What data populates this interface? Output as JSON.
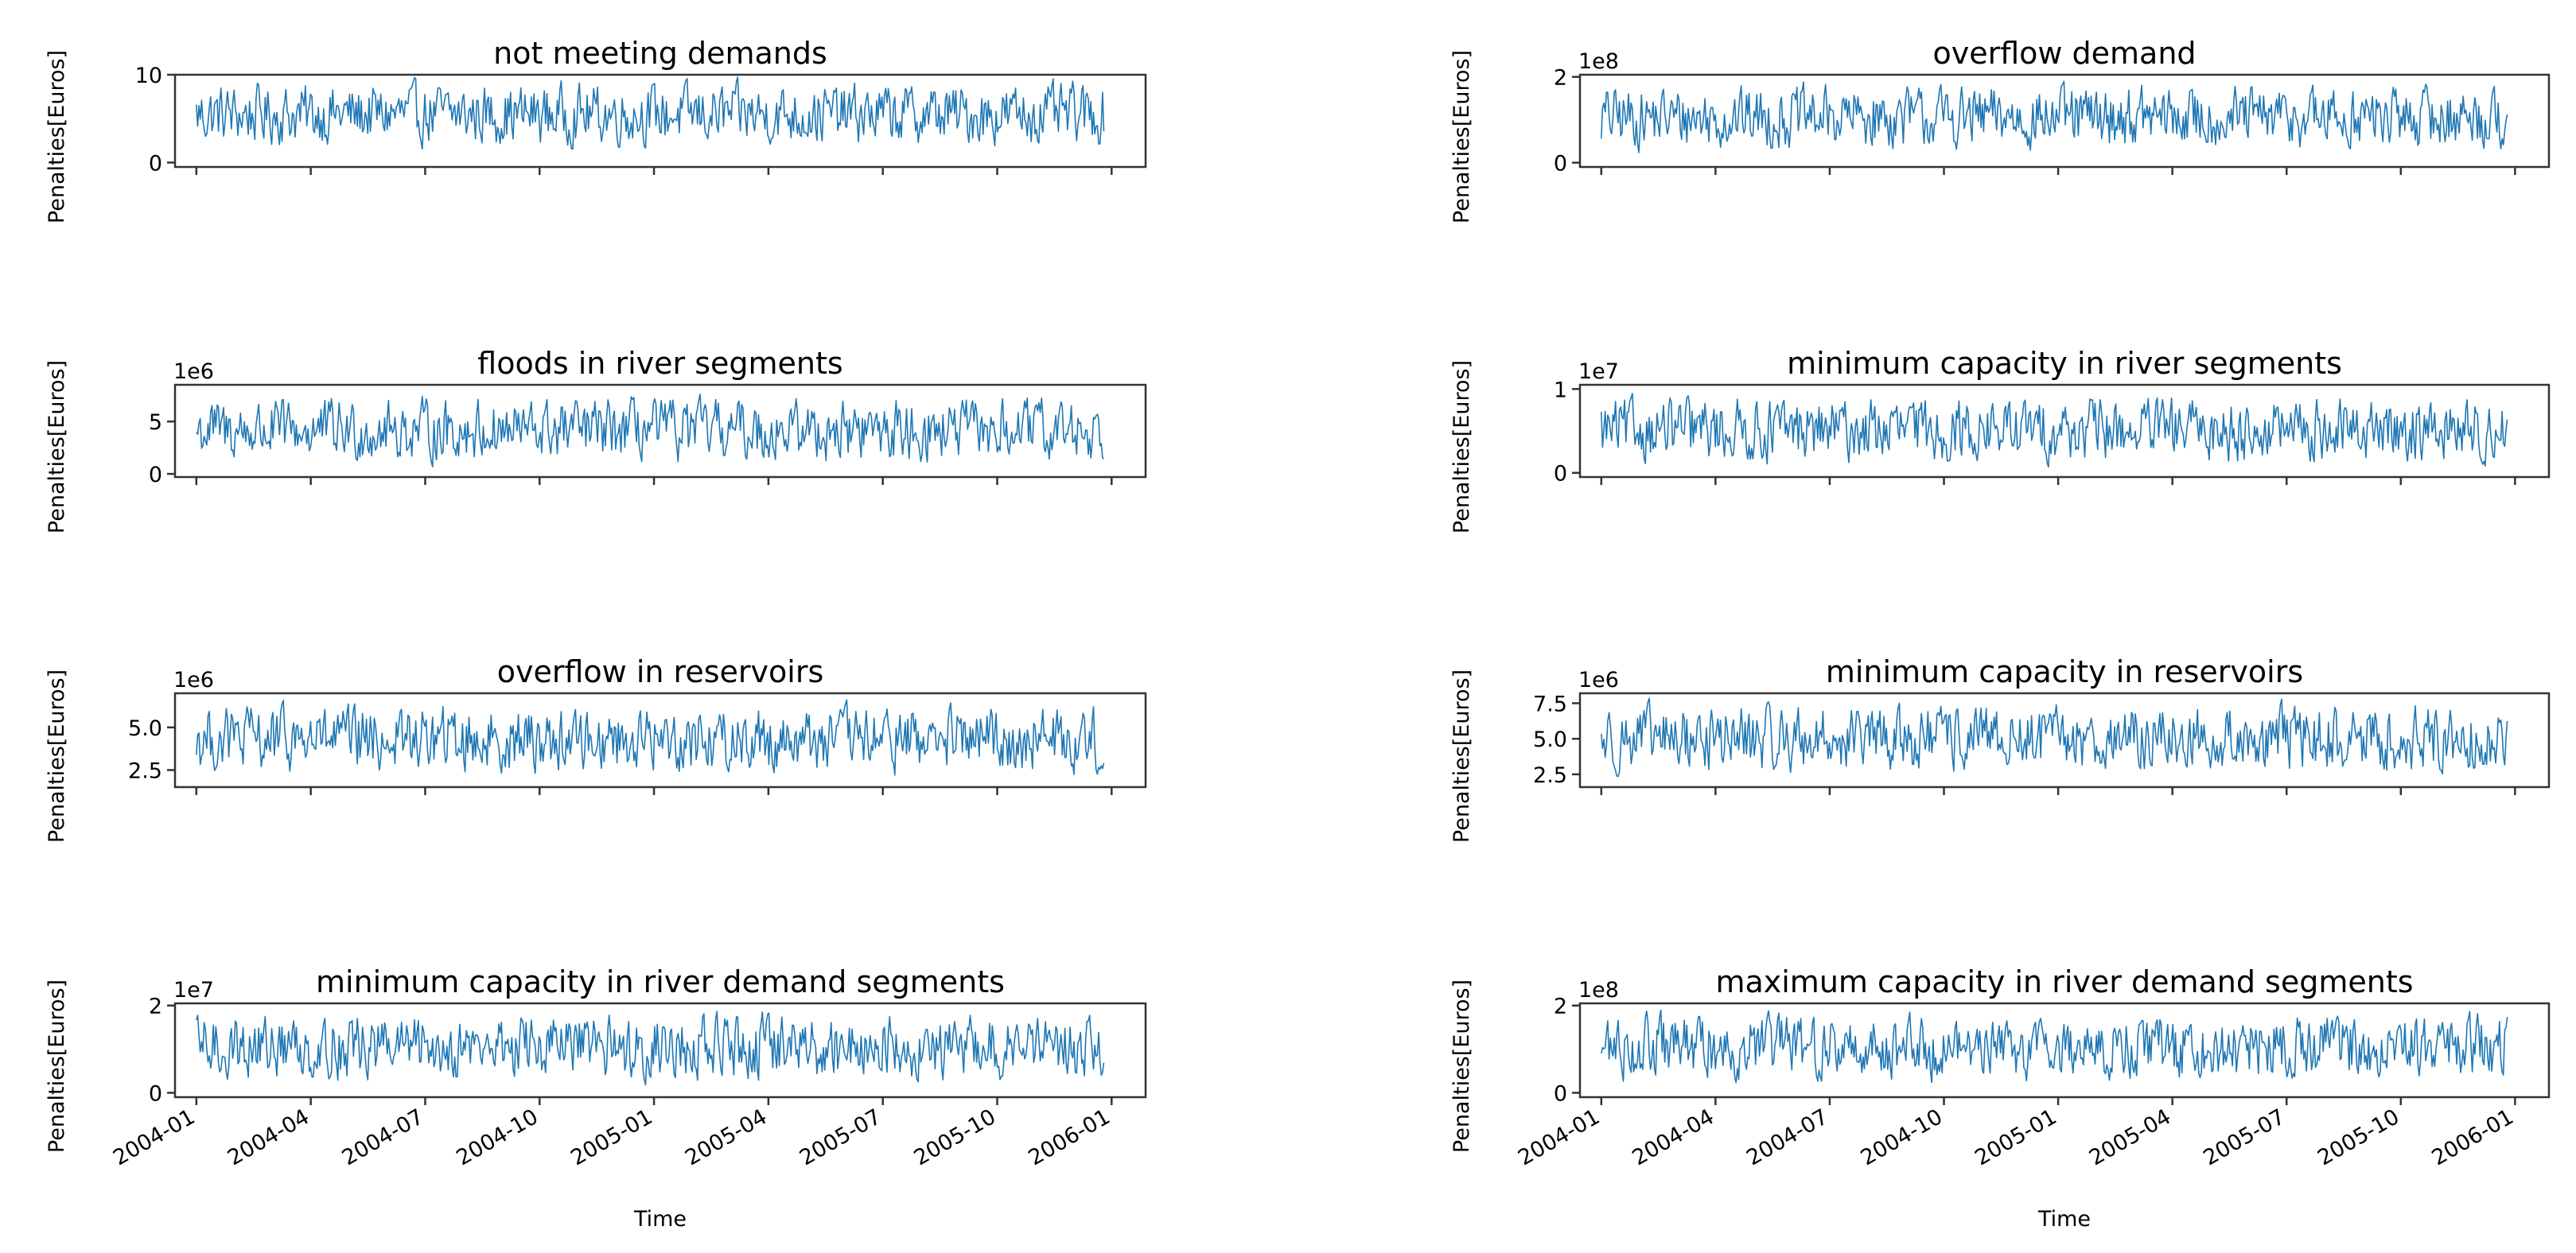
{
  "chart_data": [
    {
      "type": "line",
      "title": "not meeting demands",
      "ylabel": "Penalties[Euros]",
      "xlabel": "",
      "y_offset": "",
      "ylim": [
        -0.5,
        10
      ],
      "yticks": [
        {
          "value": 0,
          "label": "0"
        },
        {
          "value": 10,
          "label": "10"
        }
      ],
      "series_summary": {
        "min": 1,
        "max": 10,
        "mean": 5
      },
      "x_range": [
        "2004-01-01",
        "2005-12-28"
      ]
    },
    {
      "type": "line",
      "title": "overflow demand",
      "ylabel": "Penalties[Euros]",
      "xlabel": "",
      "y_offset": "1e8",
      "ylim": [
        -0.1,
        2.05
      ],
      "yticks": [
        {
          "value": 0,
          "label": "0"
        },
        {
          "value": 2,
          "label": "2"
        }
      ],
      "series_summary": {
        "min": 0.1,
        "max": 2,
        "mean": 1.1
      },
      "x_range": [
        "2004-01-01",
        "2005-12-28"
      ]
    },
    {
      "type": "line",
      "title": "floods in river segments",
      "ylabel": "Penalties[Euros]",
      "xlabel": "",
      "y_offset": "1e6",
      "ylim": [
        -0.3,
        8.5
      ],
      "yticks": [
        {
          "value": 0,
          "label": "0"
        },
        {
          "value": 5,
          "label": "5"
        }
      ],
      "series_summary": {
        "min": 0.3,
        "max": 8,
        "mean": 4
      },
      "x_range": [
        "2004-01-01",
        "2005-12-28"
      ]
    },
    {
      "type": "line",
      "title": "minimum capacity in river segments",
      "ylabel": "Penalties[Euros]",
      "xlabel": "",
      "y_offset": "1e7",
      "ylim": [
        -0.05,
        1.05
      ],
      "yticks": [
        {
          "value": 0,
          "label": "0"
        },
        {
          "value": 1,
          "label": "1"
        }
      ],
      "series_summary": {
        "min": 0.02,
        "max": 1,
        "mean": 0.5
      },
      "x_range": [
        "2004-01-01",
        "2005-12-28"
      ]
    },
    {
      "type": "line",
      "title": "overflow in reservoirs",
      "ylabel": "Penalties[Euros]",
      "xlabel": "",
      "y_offset": "1e6",
      "ylim": [
        1.5,
        7
      ],
      "yticks": [
        {
          "value": 2.5,
          "label": "2.5"
        },
        {
          "value": 5.0,
          "label": "5.0"
        }
      ],
      "series_summary": {
        "min": 1.8,
        "max": 6.8,
        "mean": 4.2
      },
      "x_range": [
        "2004-01-01",
        "2005-12-28"
      ]
    },
    {
      "type": "line",
      "title": "minimum capacity in reservoirs",
      "ylabel": "Penalties[Euros]",
      "xlabel": "",
      "y_offset": "1e6",
      "ylim": [
        1.6,
        8.2
      ],
      "yticks": [
        {
          "value": 2.5,
          "label": "2.5"
        },
        {
          "value": 5.0,
          "label": "5.0"
        },
        {
          "value": 7.5,
          "label": "7.5"
        }
      ],
      "series_summary": {
        "min": 2,
        "max": 8,
        "mean": 4.8
      },
      "x_range": [
        "2004-01-01",
        "2005-12-28"
      ]
    },
    {
      "type": "line",
      "title": "minimum capacity in river demand segments",
      "ylabel": "Penalties[Euros]",
      "xlabel": "Time",
      "y_offset": "1e7",
      "ylim": [
        -0.1,
        2.05
      ],
      "yticks": [
        {
          "value": 0,
          "label": "0"
        },
        {
          "value": 2,
          "label": "2"
        }
      ],
      "xticks": [
        "2004-01",
        "2004-04",
        "2004-07",
        "2004-10",
        "2005-01",
        "2005-04",
        "2005-07",
        "2005-10",
        "2006-01"
      ],
      "series_summary": {
        "min": 0.1,
        "max": 2,
        "mean": 1.1
      },
      "x_range": [
        "2004-01-01",
        "2005-12-28"
      ]
    },
    {
      "type": "line",
      "title": "maximum capacity in river demand segments",
      "ylabel": "Penalties[Euros]",
      "xlabel": "Time",
      "y_offset": "1e8",
      "ylim": [
        -0.1,
        2.05
      ],
      "yticks": [
        {
          "value": 0,
          "label": "0"
        },
        {
          "value": 2,
          "label": "2"
        }
      ],
      "xticks": [
        "2004-01",
        "2004-04",
        "2004-07",
        "2004-10",
        "2005-01",
        "2005-04",
        "2005-07",
        "2005-10",
        "2006-01"
      ],
      "series_summary": {
        "min": 0.1,
        "max": 2,
        "mean": 1.1
      },
      "x_range": [
        "2004-01-01",
        "2005-12-28"
      ]
    }
  ],
  "colors": {
    "series": "#1f77b4",
    "axes": "#333333"
  }
}
